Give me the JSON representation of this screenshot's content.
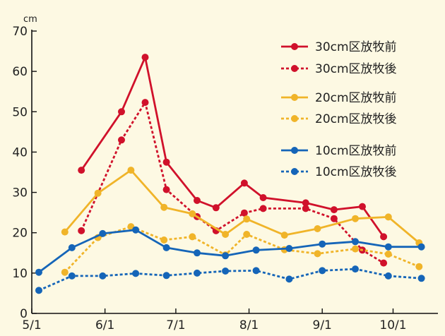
{
  "chart_data": {
    "type": "line",
    "ylabel": "cm",
    "ylim": [
      0,
      70
    ],
    "y_ticks": [
      "0",
      "10",
      "20",
      "30",
      "40",
      "50",
      "60",
      "70"
    ],
    "x_ticks": [
      {
        "label": "5/1",
        "day": 0
      },
      {
        "label": "6/1",
        "day": 31
      },
      {
        "label": "7/1",
        "day": 61
      },
      {
        "label": "8/1",
        "day": 92
      },
      {
        "label": "9/1",
        "day": 123
      },
      {
        "label": "10/1",
        "day": 153
      }
    ],
    "xlim_days": [
      0,
      172
    ],
    "grid": false,
    "legend_position": "top-right",
    "series": [
      {
        "name": "30cm区放牧前",
        "color": "#d0112b",
        "dash": "solid",
        "days": [
          21,
          38,
          48,
          57,
          70,
          78,
          90,
          98,
          116,
          128,
          140,
          149,
          161
        ],
        "values": [
          35.5,
          50,
          63.5,
          37.5,
          28,
          26.2,
          32.3,
          28.7,
          27.4,
          25.7,
          26.5,
          19,
          null
        ]
      },
      {
        "name": "30cm区放牧後",
        "color": "#d0112b",
        "dash": "dashed",
        "days": [
          21,
          38,
          48,
          57,
          70,
          78,
          90,
          98,
          116,
          128,
          140,
          149,
          161
        ],
        "values": [
          20.5,
          43,
          52.3,
          30.7,
          24,
          20.5,
          24.9,
          26,
          26,
          23.5,
          15.7,
          12.5,
          null
        ]
      },
      {
        "name": "20cm区放牧前",
        "color": "#f0b429",
        "dash": "solid",
        "days": [
          14,
          28,
          42,
          56,
          68,
          82,
          91,
          107,
          121,
          137,
          151,
          164
        ],
        "values": [
          20.2,
          29.8,
          35.5,
          26.3,
          24.7,
          19.6,
          23.4,
          19.4,
          21,
          23.5,
          23.9,
          17.5
        ]
      },
      {
        "name": "20cm区放牧後",
        "color": "#f0b429",
        "dash": "dashed",
        "days": [
          14,
          28,
          42,
          56,
          68,
          82,
          91,
          107,
          121,
          137,
          151,
          164
        ],
        "values": [
          10.2,
          18.8,
          21.5,
          18.2,
          19,
          14.5,
          19.6,
          15.8,
          14.8,
          16,
          14.7,
          11.6
        ]
      },
      {
        "name": "10cm区放牧前",
        "color": "#1565b8",
        "dash": "solid",
        "days": [
          3,
          17,
          30,
          44,
          57,
          70,
          82,
          95,
          109,
          123,
          137,
          151,
          165
        ],
        "values": [
          10.2,
          16.3,
          19.8,
          20.7,
          16.3,
          15,
          14.3,
          15.7,
          16.1,
          17.2,
          17.8,
          16.5,
          16.5
        ]
      },
      {
        "name": "10cm区放牧後",
        "color": "#1565b8",
        "dash": "dashed",
        "days": [
          3,
          17,
          30,
          44,
          57,
          70,
          82,
          95,
          109,
          123,
          137,
          151,
          165
        ],
        "values": [
          5.7,
          9.3,
          9.3,
          9.9,
          9.4,
          10,
          10.5,
          10.6,
          8.5,
          10.6,
          11,
          9.3,
          8.7
        ]
      }
    ]
  }
}
